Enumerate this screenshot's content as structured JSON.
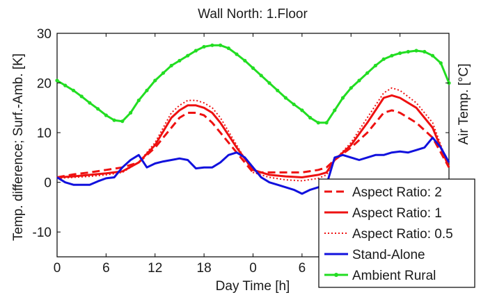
{
  "chart_data": {
    "type": "line",
    "title": "Wall North: 1.Floor",
    "xlabel": "Day Time [h]",
    "ylabel": "Temp. difference; Surf.-Amb. [K]",
    "ylabel_right": "Air Temp. [°C]",
    "x_tick_labels": [
      "0",
      "6",
      "12",
      "18",
      "0",
      "6",
      "12",
      "18"
    ],
    "y_ticks": [
      -10,
      0,
      10,
      20,
      30
    ],
    "xlim": [
      0,
      48
    ],
    "ylim": [
      -15,
      30
    ],
    "grid": false,
    "legend_position": "bottom-right",
    "series": [
      {
        "name": "Aspect Ratio: 2",
        "color": "#ee1111",
        "style": "dashed",
        "x": [
          0,
          2,
          4,
          6,
          8,
          10,
          12,
          14,
          15,
          16,
          17,
          18,
          19,
          20,
          22,
          24,
          26,
          28,
          30,
          32,
          33,
          34,
          36,
          38,
          40,
          41,
          42,
          44,
          46,
          48
        ],
        "y": [
          1,
          1.6,
          2,
          2.5,
          3,
          4,
          7,
          11,
          13,
          14,
          14,
          13.5,
          12,
          10,
          6,
          2,
          2,
          2,
          2,
          2.5,
          3,
          4.5,
          7,
          10,
          14,
          14.5,
          14,
          12,
          9,
          3
        ]
      },
      {
        "name": "Aspect Ratio: 1",
        "color": "#ee1111",
        "style": "solid",
        "x": [
          0,
          2,
          4,
          6,
          8,
          10,
          12,
          14,
          15,
          16,
          17,
          18,
          19,
          20,
          22,
          24,
          26,
          28,
          30,
          32,
          33,
          34,
          36,
          38,
          40,
          41,
          42,
          44,
          46,
          48
        ],
        "y": [
          1,
          1.2,
          1.5,
          1.8,
          2.2,
          4,
          7.5,
          13,
          14.5,
          15.5,
          15.5,
          15,
          14,
          12,
          7,
          2.5,
          1.5,
          1.2,
          1,
          1.5,
          2,
          4.5,
          7.5,
          12,
          17,
          17.5,
          17,
          15,
          11,
          3
        ]
      },
      {
        "name": "Aspect Ratio: 0.5",
        "color": "#ee1111",
        "style": "dotted",
        "x": [
          0,
          2,
          4,
          6,
          8,
          10,
          12,
          14,
          15,
          16,
          17,
          18,
          19,
          20,
          22,
          24,
          26,
          28,
          30,
          32,
          33,
          34,
          36,
          38,
          40,
          41,
          42,
          44,
          46,
          48
        ],
        "y": [
          0.8,
          1,
          1.2,
          1.5,
          2,
          4,
          8,
          14,
          15.5,
          16.5,
          16.5,
          16,
          15,
          13,
          7.5,
          2,
          1,
          0.5,
          0.3,
          0.8,
          1.5,
          4.5,
          8,
          13,
          18,
          19,
          18.5,
          16,
          12,
          3
        ]
      },
      {
        "name": "Stand-Alone",
        "color": "#1111dd",
        "style": "solid",
        "x": [
          0,
          1,
          2,
          3,
          4,
          5,
          6,
          7,
          8,
          9,
          10,
          11,
          12,
          13,
          14,
          15,
          16,
          17,
          18,
          19,
          20,
          21,
          22,
          23,
          24,
          25,
          26,
          27,
          28,
          29,
          30,
          31,
          32,
          33,
          34,
          35,
          36,
          37,
          38,
          39,
          40,
          41,
          42,
          43,
          44,
          45,
          46,
          47,
          48
        ],
        "y": [
          1,
          0,
          -0.5,
          -0.5,
          -0.5,
          0.2,
          0.8,
          1,
          3,
          4.5,
          5.5,
          3,
          3.8,
          4.2,
          4.5,
          4.8,
          4.5,
          2.8,
          3,
          3,
          4,
          5.5,
          6,
          5,
          3,
          1,
          0,
          -0.5,
          -1,
          -1.5,
          -2.3,
          -1.5,
          -1,
          -0.5,
          5,
          5.5,
          5,
          4.5,
          5,
          5.5,
          5.5,
          6,
          6.2,
          6,
          6.5,
          7,
          9,
          7,
          4
        ]
      },
      {
        "name": "Ambient Rural",
        "color": "#22dd22",
        "style": "solid-markers",
        "x": [
          0,
          1,
          2,
          3,
          4,
          5,
          6,
          7,
          8,
          9,
          10,
          11,
          12,
          13,
          14,
          15,
          16,
          17,
          18,
          19,
          20,
          21,
          22,
          23,
          24,
          25,
          26,
          27,
          28,
          29,
          30,
          31,
          32,
          33,
          34,
          35,
          36,
          37,
          38,
          39,
          40,
          41,
          42,
          43,
          44,
          45,
          46,
          47,
          48
        ],
        "y": [
          20.5,
          19.5,
          18.5,
          17.3,
          16,
          14.8,
          13.5,
          12.5,
          12.3,
          14,
          16.5,
          18.5,
          20.5,
          22,
          23.5,
          24.5,
          25.5,
          26.5,
          27.3,
          27.6,
          27.6,
          27,
          25.8,
          24.5,
          23,
          21.5,
          20,
          18.5,
          17,
          15.7,
          14.5,
          13,
          12,
          12,
          14.5,
          17,
          19,
          20.5,
          22,
          23.5,
          24.8,
          25.5,
          26,
          26.3,
          26.5,
          26.3,
          25.5,
          24,
          20
        ]
      }
    ]
  }
}
